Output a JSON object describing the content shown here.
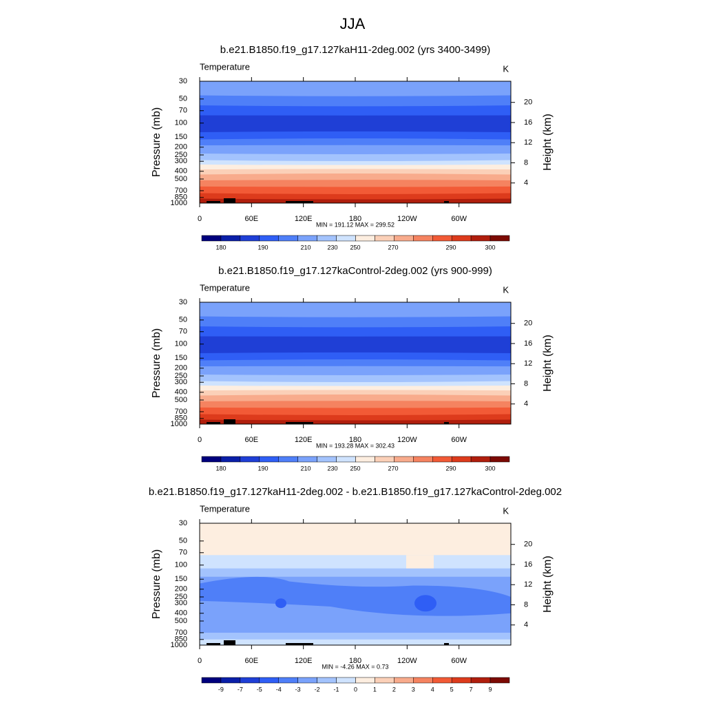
{
  "title": "JJA",
  "chart_data": [
    {
      "type": "contour",
      "title": "b.e21.B1850.f19_g17.127kaH11-2deg.002 (yrs 3400-3499)",
      "left_label": "Temperature",
      "right_label": "K",
      "y_label": "Pressure (mb)",
      "y2_label": "Height (km)",
      "log_y": true,
      "xlim": [
        0,
        360
      ],
      "xticks": [
        0,
        {
          "value": 60,
          "label": "60E"
        },
        {
          "value": 120,
          "label": "120E"
        },
        180,
        {
          "value": 240,
          "label": "120W"
        },
        {
          "value": 300,
          "label": "60W"
        }
      ],
      "ylim": [
        1000,
        30
      ],
      "yticks": [
        30,
        50,
        70,
        100,
        150,
        200,
        250,
        300,
        400,
        500,
        700,
        850,
        1000
      ],
      "y2lim": [
        0,
        24.2
      ],
      "y2ticks": [
        4,
        8,
        12,
        16,
        20
      ],
      "stats": "MIN = 191.12  MAX = 299.52",
      "colorbar_labels": [
        "180",
        "190",
        "210",
        "230",
        "250",
        "270",
        "290",
        "300"
      ],
      "colors": [
        "#00007d",
        "#0a1fa8",
        "#1f3fd6",
        "#2f5ef5",
        "#4f7ff8",
        "#7aa2fb",
        "#a3c3fd",
        "#cfe3fe",
        "#fdeee0",
        "#fbd0b8",
        "#f8ab8c",
        "#f58360",
        "#f25a36",
        "#dd3b1c",
        "#b01e0d",
        "#7c0a04"
      ]
    },
    {
      "type": "contour",
      "title": "b.e21.B1850.f19_g17.127kaControl-2deg.002 (yrs 900-999)",
      "left_label": "Temperature",
      "right_label": "K",
      "y_label": "Pressure (mb)",
      "y2_label": "Height (km)",
      "log_y": true,
      "xlim": [
        0,
        360
      ],
      "xticks": [
        0,
        {
          "value": 60,
          "label": "60E"
        },
        {
          "value": 120,
          "label": "120E"
        },
        180,
        {
          "value": 240,
          "label": "120W"
        },
        {
          "value": 300,
          "label": "60W"
        }
      ],
      "ylim": [
        1000,
        30
      ],
      "yticks": [
        30,
        50,
        70,
        100,
        150,
        200,
        250,
        300,
        400,
        500,
        700,
        850,
        1000
      ],
      "y2lim": [
        0,
        24.2
      ],
      "y2ticks": [
        4,
        8,
        12,
        16,
        20
      ],
      "stats": "MIN = 193.28  MAX = 302.43",
      "colorbar_labels": [
        "180",
        "190",
        "210",
        "230",
        "250",
        "270",
        "290",
        "300"
      ],
      "colors": [
        "#00007d",
        "#0a1fa8",
        "#1f3fd6",
        "#2f5ef5",
        "#4f7ff8",
        "#7aa2fb",
        "#a3c3fd",
        "#cfe3fe",
        "#fdeee0",
        "#fbd0b8",
        "#f8ab8c",
        "#f58360",
        "#f25a36",
        "#dd3b1c",
        "#b01e0d",
        "#7c0a04"
      ]
    },
    {
      "type": "contour",
      "title": "b.e21.B1850.f19_g17.127kaH11-2deg.002 - b.e21.B1850.f19_g17.127kaControl-2deg.002",
      "left_label": "Temperature",
      "right_label": "K",
      "y_label": "Pressure (mb)",
      "y2_label": "Height (km)",
      "log_y": true,
      "xlim": [
        0,
        360
      ],
      "xticks": [
        0,
        {
          "value": 60,
          "label": "60E"
        },
        {
          "value": 120,
          "label": "120E"
        },
        180,
        {
          "value": 240,
          "label": "120W"
        },
        {
          "value": 300,
          "label": "60W"
        }
      ],
      "ylim": [
        1000,
        30
      ],
      "yticks": [
        30,
        50,
        70,
        100,
        150,
        200,
        250,
        300,
        400,
        500,
        700,
        850,
        1000
      ],
      "y2lim": [
        0,
        24.2
      ],
      "y2ticks": [
        4,
        8,
        12,
        16,
        20
      ],
      "stats": "MIN =  -4.26  MAX =   0.73",
      "colorbar_labels": [
        "-9",
        "-7",
        "-5",
        "-4",
        "-3",
        "-2",
        "-1",
        "0",
        "1",
        "2",
        "3",
        "4",
        "5",
        "7",
        "9"
      ],
      "colors": [
        "#00007d",
        "#0a1fa8",
        "#1f3fd6",
        "#2f5ef5",
        "#4f7ff8",
        "#7aa2fb",
        "#a3c3fd",
        "#cfe3fe",
        "#fdeee0",
        "#fbd0b8",
        "#f8ab8c",
        "#f58360",
        "#f25a36",
        "#dd3b1c",
        "#b01e0d",
        "#7c0a04"
      ]
    }
  ]
}
